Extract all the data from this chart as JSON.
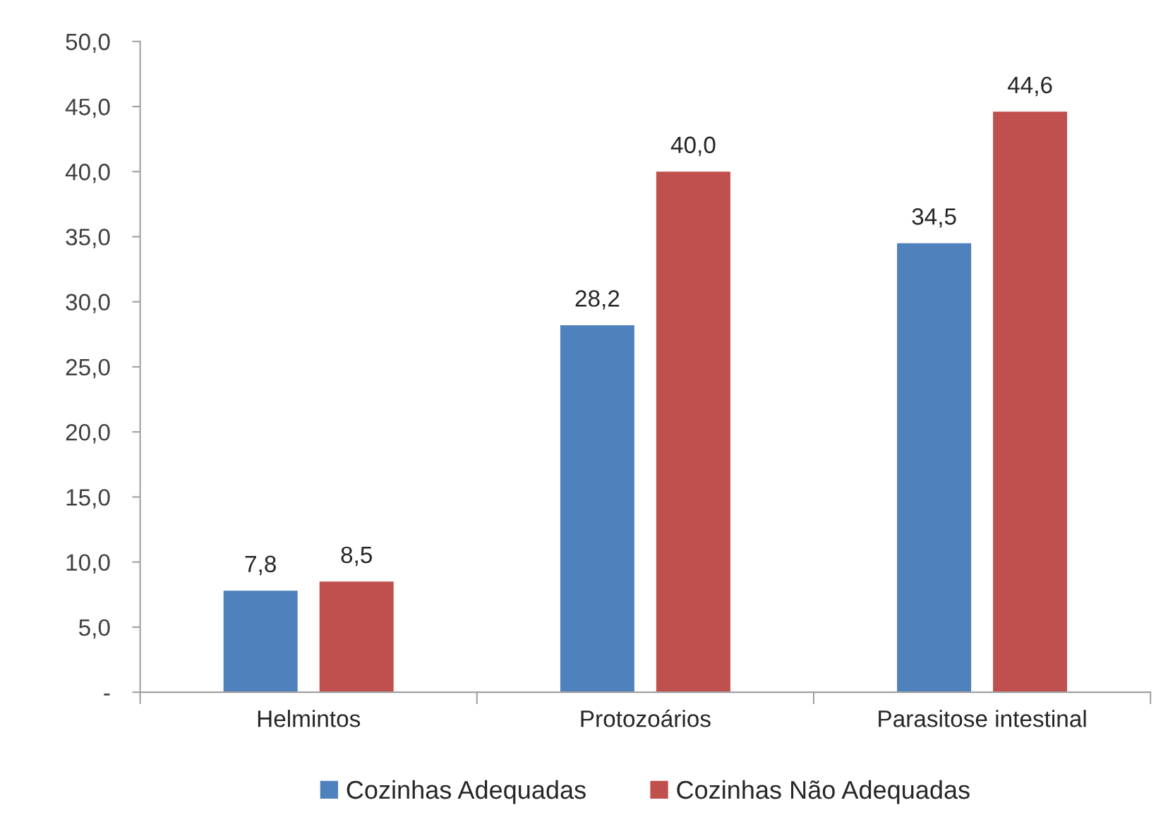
{
  "chart_data": {
    "type": "bar",
    "categories": [
      "Helmintos",
      "Protozoários",
      "Parasitose intestinal"
    ],
    "series": [
      {
        "name": "Cozinhas Adequadas",
        "color": "#4f81bd",
        "values": [
          7.8,
          28.2,
          34.5
        ],
        "value_labels": [
          "7,8",
          "28,2",
          "34,5"
        ]
      },
      {
        "name": "Cozinhas Não Adequadas",
        "color": "#c0504d",
        "values": [
          8.5,
          40.0,
          44.6
        ],
        "value_labels": [
          "8,5",
          "40,0",
          "44,6"
        ]
      }
    ],
    "ylim": [
      0,
      50
    ],
    "yticks": [
      {
        "value": 0,
        "label": "-"
      },
      {
        "value": 5,
        "label": "5,0"
      },
      {
        "value": 10,
        "label": "10,0"
      },
      {
        "value": 15,
        "label": "15,0"
      },
      {
        "value": 20,
        "label": "20,0"
      },
      {
        "value": 25,
        "label": "25,0"
      },
      {
        "value": 30,
        "label": "30,0"
      },
      {
        "value": 35,
        "label": "35,0"
      },
      {
        "value": 40,
        "label": "40,0"
      },
      {
        "value": 45,
        "label": "45,0"
      },
      {
        "value": 50,
        "label": "50,0"
      }
    ],
    "grid": false,
    "legend": "bottom"
  }
}
